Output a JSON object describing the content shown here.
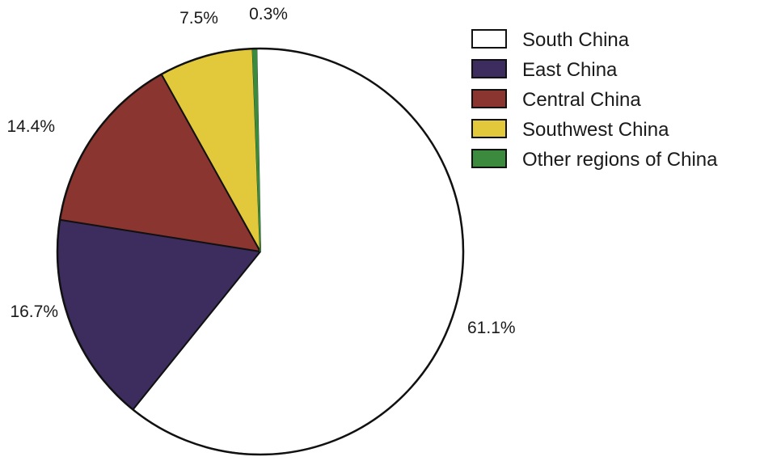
{
  "chart_data": {
    "type": "pie",
    "start_angle_deg": -1.08,
    "direction": "clockwise",
    "series": [
      {
        "name": "South China",
        "value": 61.1,
        "label": "61.1%",
        "color": "#ffffff"
      },
      {
        "name": "East China",
        "value": 16.7,
        "label": "16.7%",
        "color": "#3d2d5f"
      },
      {
        "name": "Central China",
        "value": 14.4,
        "label": "14.4%",
        "color": "#8b3530"
      },
      {
        "name": "Southwest China",
        "value": 7.5,
        "label": "7.5%",
        "color": "#e2c93c"
      },
      {
        "name": "Other regions of China",
        "value": 0.3,
        "label": "0.3%",
        "color": "#3b8a3e"
      }
    ],
    "legend_position": "top-right"
  }
}
